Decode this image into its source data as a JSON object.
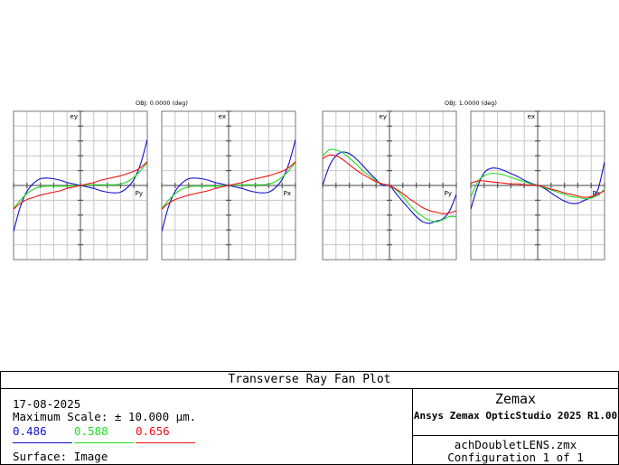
{
  "chart_data": {
    "type": "line",
    "title": "Transverse Ray Fan Plot",
    "wavelengths": [
      {
        "label": "0.486",
        "color": "#1010d0"
      },
      {
        "label": "0.588",
        "color": "#22dd22"
      },
      {
        "label": "0.656",
        "color": "#ee1111"
      }
    ],
    "fields": [
      {
        "label": "OBJ: 0.0000 (deg)",
        "fans": [
          {
            "vlabel": "ey",
            "hlabel": "Py",
            "xlim": [
              -1,
              1
            ],
            "ylim": [
              -10,
              10
            ],
            "series": [
              {
                "name": "0.486",
                "x": [
                  -1,
                  -0.9,
                  -0.8,
                  -0.7,
                  -0.6,
                  -0.5,
                  -0.4,
                  -0.3,
                  -0.2,
                  -0.1,
                  0,
                  0.1,
                  0.2,
                  0.3,
                  0.4,
                  0.5,
                  0.6,
                  0.7,
                  0.8,
                  0.9,
                  1
                ],
                "y": [
                  -6.2,
                  -2.9,
                  -0.8,
                  0.3,
                  0.9,
                  1.0,
                  0.9,
                  0.7,
                  0.4,
                  0.2,
                  0,
                  -0.2,
                  -0.4,
                  -0.7,
                  -0.9,
                  -1.0,
                  -0.9,
                  -0.3,
                  0.8,
                  2.9,
                  6.2
                ]
              },
              {
                "name": "0.588",
                "x": [
                  -1,
                  -0.9,
                  -0.8,
                  -0.7,
                  -0.6,
                  -0.5,
                  -0.4,
                  -0.3,
                  -0.2,
                  -0.1,
                  0,
                  0.1,
                  0.2,
                  0.3,
                  0.4,
                  0.5,
                  0.6,
                  0.7,
                  0.8,
                  0.9,
                  1
                ],
                "y": [
                  -3.1,
                  -2.0,
                  -1.1,
                  -0.5,
                  -0.2,
                  -0.1,
                  -0.1,
                  -0.1,
                  -0.1,
                  -0.05,
                  0,
                  0.05,
                  0.1,
                  0.1,
                  0.1,
                  0.1,
                  0.2,
                  0.5,
                  1.1,
                  2.0,
                  3.1
                ]
              },
              {
                "name": "0.656",
                "x": [
                  -1,
                  -0.9,
                  -0.8,
                  -0.7,
                  -0.6,
                  -0.5,
                  -0.4,
                  -0.3,
                  -0.2,
                  -0.1,
                  0,
                  0.1,
                  0.2,
                  0.3,
                  0.4,
                  0.5,
                  0.6,
                  0.7,
                  0.8,
                  0.9,
                  1
                ],
                "y": [
                  -3.2,
                  -2.4,
                  -1.9,
                  -1.6,
                  -1.3,
                  -1.1,
                  -0.9,
                  -0.7,
                  -0.4,
                  -0.2,
                  0,
                  0.2,
                  0.4,
                  0.7,
                  0.9,
                  1.1,
                  1.3,
                  1.6,
                  1.9,
                  2.4,
                  3.2
                ]
              }
            ]
          },
          {
            "vlabel": "ex",
            "hlabel": "Px",
            "xlim": [
              -1,
              1
            ],
            "ylim": [
              -10,
              10
            ],
            "series": [
              {
                "name": "0.486",
                "x": [
                  -1,
                  -0.9,
                  -0.8,
                  -0.7,
                  -0.6,
                  -0.5,
                  -0.4,
                  -0.3,
                  -0.2,
                  -0.1,
                  0,
                  0.1,
                  0.2,
                  0.3,
                  0.4,
                  0.5,
                  0.6,
                  0.7,
                  0.8,
                  0.9,
                  1
                ],
                "y": [
                  -6.2,
                  -2.9,
                  -0.8,
                  0.3,
                  0.9,
                  1.0,
                  0.9,
                  0.7,
                  0.4,
                  0.2,
                  0,
                  -0.2,
                  -0.4,
                  -0.7,
                  -0.9,
                  -1.0,
                  -0.9,
                  -0.3,
                  0.8,
                  2.9,
                  6.2
                ]
              },
              {
                "name": "0.588",
                "x": [
                  -1,
                  -0.9,
                  -0.8,
                  -0.7,
                  -0.6,
                  -0.5,
                  -0.4,
                  -0.3,
                  -0.2,
                  -0.1,
                  0,
                  0.1,
                  0.2,
                  0.3,
                  0.4,
                  0.5,
                  0.6,
                  0.7,
                  0.8,
                  0.9,
                  1
                ],
                "y": [
                  -3.1,
                  -2.0,
                  -1.1,
                  -0.5,
                  -0.2,
                  -0.1,
                  -0.1,
                  -0.1,
                  -0.1,
                  -0.05,
                  0,
                  0.05,
                  0.1,
                  0.1,
                  0.1,
                  0.1,
                  0.2,
                  0.5,
                  1.1,
                  2.0,
                  3.1
                ]
              },
              {
                "name": "0.656",
                "x": [
                  -1,
                  -0.9,
                  -0.8,
                  -0.7,
                  -0.6,
                  -0.5,
                  -0.4,
                  -0.3,
                  -0.2,
                  -0.1,
                  0,
                  0.1,
                  0.2,
                  0.3,
                  0.4,
                  0.5,
                  0.6,
                  0.7,
                  0.8,
                  0.9,
                  1
                ],
                "y": [
                  -3.2,
                  -2.4,
                  -1.9,
                  -1.6,
                  -1.3,
                  -1.1,
                  -0.9,
                  -0.7,
                  -0.4,
                  -0.2,
                  0,
                  0.2,
                  0.4,
                  0.7,
                  0.9,
                  1.1,
                  1.3,
                  1.6,
                  1.9,
                  2.4,
                  3.2
                ]
              }
            ]
          }
        ]
      },
      {
        "label": "OBJ: 1.0000 (deg)",
        "fans": [
          {
            "vlabel": "ey",
            "hlabel": "Py",
            "xlim": [
              -1,
              1
            ],
            "ylim": [
              -10,
              10
            ],
            "series": [
              {
                "name": "0.486",
                "x": [
                  -1,
                  -0.9,
                  -0.8,
                  -0.7,
                  -0.6,
                  -0.5,
                  -0.4,
                  -0.3,
                  -0.2,
                  -0.1,
                  0,
                  0.1,
                  0.2,
                  0.3,
                  0.4,
                  0.5,
                  0.6,
                  0.7,
                  0.8,
                  0.9,
                  1
                ],
                "y": [
                  0,
                  2.6,
                  4.0,
                  4.5,
                  4.3,
                  3.6,
                  2.7,
                  1.7,
                  0.8,
                  0,
                  0,
                  -1.1,
                  -2.2,
                  -3.2,
                  -4.2,
                  -4.9,
                  -5.1,
                  -4.8,
                  -4.5,
                  -3.4,
                  -1.2
                ]
              },
              {
                "name": "0.588",
                "x": [
                  -1,
                  -0.9,
                  -0.8,
                  -0.7,
                  -0.6,
                  -0.5,
                  -0.4,
                  -0.3,
                  -0.2,
                  -0.1,
                  0,
                  0.1,
                  0.2,
                  0.3,
                  0.4,
                  0.5,
                  0.6,
                  0.7,
                  0.8,
                  0.9,
                  1
                ],
                "y": [
                  4.0,
                  4.8,
                  4.8,
                  4.4,
                  3.7,
                  2.9,
                  2.0,
                  1.3,
                  0.6,
                  0.2,
                  0,
                  -0.6,
                  -1.5,
                  -2.6,
                  -3.5,
                  -4.2,
                  -4.7,
                  -4.9,
                  -4.6,
                  -4.2,
                  -4.2
                ]
              },
              {
                "name": "0.656",
                "x": [
                  -1,
                  -0.9,
                  -0.8,
                  -0.7,
                  -0.6,
                  -0.5,
                  -0.4,
                  -0.3,
                  -0.2,
                  -0.1,
                  0,
                  0.1,
                  0.2,
                  0.3,
                  0.4,
                  0.5,
                  0.6,
                  0.7,
                  0.8,
                  0.9,
                  1
                ],
                "y": [
                  3.6,
                  4.1,
                  4.0,
                  3.5,
                  2.8,
                  2.1,
                  1.5,
                  1.0,
                  0.5,
                  0.2,
                  0,
                  -0.5,
                  -1.1,
                  -1.8,
                  -2.4,
                  -3.0,
                  -3.4,
                  -3.6,
                  -3.8,
                  -3.7,
                  -3.4
                ]
              }
            ]
          },
          {
            "vlabel": "ex",
            "hlabel": "Px",
            "xlim": [
              -1,
              1
            ],
            "ylim": [
              -10,
              10
            ],
            "series": [
              {
                "name": "0.486",
                "x": [
                  -1,
                  -0.9,
                  -0.8,
                  -0.7,
                  -0.6,
                  -0.5,
                  -0.4,
                  -0.3,
                  -0.2,
                  -0.1,
                  0,
                  0.1,
                  0.2,
                  0.3,
                  0.4,
                  0.5,
                  0.6,
                  0.7,
                  0.8,
                  0.9,
                  1
                ],
                "y": [
                  -3.2,
                  -0.2,
                  1.7,
                  2.3,
                  2.3,
                  2.0,
                  1.6,
                  1.2,
                  0.7,
                  0.3,
                  0,
                  -0.4,
                  -1.0,
                  -1.6,
                  -2.1,
                  -2.4,
                  -2.4,
                  -2.0,
                  -1.6,
                  -0.6,
                  3.2
                ]
              },
              {
                "name": "0.588",
                "x": [
                  -1,
                  -0.9,
                  -0.8,
                  -0.7,
                  -0.6,
                  -0.5,
                  -0.4,
                  -0.3,
                  -0.2,
                  -0.1,
                  0,
                  0.1,
                  0.2,
                  0.3,
                  0.4,
                  0.5,
                  0.6,
                  0.7,
                  0.8,
                  0.9,
                  1
                ],
                "y": [
                  -1.6,
                  0.5,
                  1.3,
                  1.6,
                  1.6,
                  1.4,
                  1.1,
                  0.8,
                  0.5,
                  0.2,
                  0,
                  -0.3,
                  -0.6,
                  -0.9,
                  -1.2,
                  -1.5,
                  -1.6,
                  -1.8,
                  -1.7,
                  -1.3,
                  -0.5
                ]
              },
              {
                "name": "0.656",
                "x": [
                  -1,
                  -0.9,
                  -0.8,
                  -0.7,
                  -0.6,
                  -0.5,
                  -0.4,
                  -0.3,
                  -0.2,
                  -0.1,
                  0,
                  0.1,
                  0.2,
                  0.3,
                  0.4,
                  0.5,
                  0.6,
                  0.7,
                  0.8,
                  0.9,
                  1
                ],
                "y": [
                  0.3,
                  0.6,
                  0.6,
                  0.5,
                  0.4,
                  0.3,
                  0.2,
                  0.2,
                  0.1,
                  0.05,
                  0,
                  -0.2,
                  -0.5,
                  -0.7,
                  -1.0,
                  -1.2,
                  -1.4,
                  -1.6,
                  -1.5,
                  -1.2,
                  -0.7
                ]
              }
            ]
          }
        ]
      }
    ]
  },
  "info": {
    "title": "Transverse Ray Fan Plot",
    "date": "17-08-2025",
    "max_scale": "Maximum Scale: ± 10.000 µm.",
    "surface": "Surface: Image",
    "brand": "Zemax",
    "product": "Ansys Zemax OpticStudio 2025 R1.00",
    "file": "achDoubletLENS.zmx",
    "configuration": "Configuration 1 of 1"
  }
}
